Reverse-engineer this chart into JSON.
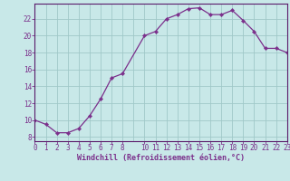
{
  "x": [
    0,
    1,
    2,
    3,
    4,
    5,
    6,
    7,
    8,
    10,
    11,
    12,
    13,
    14,
    15,
    16,
    17,
    18,
    19,
    20,
    21,
    22,
    23
  ],
  "y": [
    10.0,
    9.5,
    8.5,
    8.5,
    9.0,
    10.5,
    12.5,
    15.0,
    15.5,
    20.0,
    20.5,
    22.0,
    22.5,
    23.2,
    23.3,
    22.5,
    22.5,
    23.0,
    21.8,
    20.5,
    18.5,
    18.5,
    18.0
  ],
  "line_color": "#7b2f8b",
  "marker_color": "#7b2f8b",
  "bg_color": "#c8e8e8",
  "grid_color": "#a0c8c8",
  "xlabel": "Windchill (Refroidissement éolien,°C)",
  "xlim": [
    0,
    23
  ],
  "ylim": [
    7.5,
    23.8
  ],
  "yticks": [
    8,
    10,
    12,
    14,
    16,
    18,
    20,
    22
  ],
  "xtick_positions": [
    0,
    1,
    2,
    3,
    4,
    5,
    6,
    7,
    8,
    10,
    11,
    12,
    13,
    14,
    15,
    16,
    17,
    18,
    19,
    20,
    21,
    22,
    23
  ],
  "xtick_labels": [
    "0",
    "1",
    "2",
    "3",
    "4",
    "5",
    "6",
    "7",
    "8",
    "10",
    "11",
    "12",
    "13",
    "14",
    "15",
    "16",
    "17",
    "18",
    "19",
    "20",
    "21",
    "22",
    "23"
  ],
  "tick_color": "#7b2f8b",
  "label_color": "#7b2f8b",
  "spine_color": "#5a1a6a",
  "fontsize_ticks": 5.5,
  "fontsize_xlabel": 6.0
}
